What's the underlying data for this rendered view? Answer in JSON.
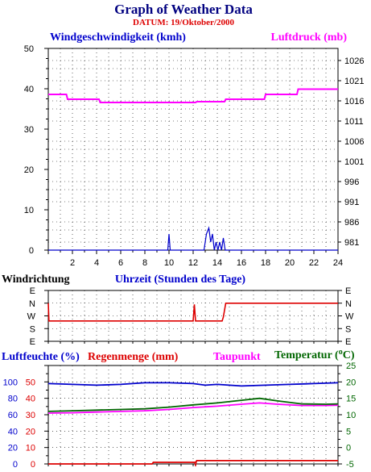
{
  "title": "Graph of Weather Data",
  "datum": "DATUM: 19/Oktober/2000",
  "colors": {
    "blue": "#0000cc",
    "magenta": "#ff00ff",
    "red": "#dd0000",
    "green": "#006600",
    "navy": "#000080"
  },
  "chart_data": [
    {
      "type": "line",
      "panel": "wind-pressure",
      "left_label": "Windgeschwindigkeit (kmh)",
      "right_label": "Luftdruck (mb)",
      "xlabel": "Uhrzeit (Stunden des Tage)",
      "x_ticks": [
        "2",
        "4",
        "6",
        "8",
        "10",
        "12",
        "14",
        "16",
        "18",
        "20",
        "22",
        "24"
      ],
      "xlim": [
        0,
        24
      ],
      "left_ylim": [
        0,
        50
      ],
      "left_ticks": [
        "0",
        "10",
        "20",
        "30",
        "40",
        "50"
      ],
      "right_ylim": [
        979,
        1029
      ],
      "right_ticks": [
        "981",
        "986",
        "991",
        "996",
        "1001",
        "1006",
        "1011",
        "1016",
        "1021",
        "1026"
      ],
      "series": [
        {
          "name": "Windgeschwindigkeit (kmh)",
          "axis": "left",
          "color": "#0000cc",
          "x": [
            0,
            9.9,
            10.0,
            10.1,
            12.9,
            13.1,
            13.3,
            13.45,
            13.6,
            13.75,
            13.9,
            14.05,
            14.2,
            14.35,
            14.5,
            14.65,
            24
          ],
          "y": [
            0,
            0,
            4,
            0,
            0,
            4,
            5.5,
            2,
            4,
            0,
            2,
            0,
            2,
            0,
            3,
            0,
            0
          ]
        },
        {
          "name": "Luftdruck (mb)",
          "axis": "right",
          "color": "#ff00ff",
          "x": [
            0,
            1.5,
            1.6,
            4.2,
            4.3,
            12.2,
            12.3,
            14.6,
            14.7,
            17.9,
            18.0,
            20.6,
            20.7,
            24
          ],
          "y": [
            1017.6,
            1017.6,
            1016.4,
            1016.4,
            1015.6,
            1015.6,
            1015.8,
            1015.8,
            1016.4,
            1016.4,
            1017.6,
            1017.6,
            1018.9,
            1018.9
          ]
        }
      ]
    },
    {
      "type": "line",
      "panel": "wind-direction",
      "left_label": "Windrichtung",
      "categories": [
        "E",
        "S",
        "W",
        "N",
        "E"
      ],
      "series": [
        {
          "name": "Windrichtung",
          "color": "#dd0000",
          "x": [
            0,
            14.4,
            14.7,
            24
          ],
          "y": [
            "W-S",
            "W-S",
            "N",
            "N"
          ],
          "values": [
            1.6,
            1.6,
            3,
            3
          ]
        }
      ]
    },
    {
      "type": "line",
      "panel": "humidity-temp",
      "labels": {
        "humidity": "Luftfeuchte (%)",
        "rain": "Regenmenge (mm)",
        "dewpoint": "Taupunkt",
        "temperature": "Temperatur (",
        "degree": "o",
        "celsius": "C)"
      },
      "xlim": [
        0,
        24
      ],
      "left_ylim": [
        0,
        120
      ],
      "humidity_ticks": [
        "0",
        "20",
        "40",
        "60",
        "80",
        "100"
      ],
      "rain_ylim": [
        0,
        60
      ],
      "rain_ticks": [
        "0",
        "10",
        "20",
        "30",
        "40",
        "50"
      ],
      "right_ylim": [
        -5,
        25
      ],
      "right_ticks": [
        "-5",
        "0",
        "5",
        "10",
        "15",
        "20",
        "25"
      ],
      "series": [
        {
          "name": "Luftfeuchte (%)",
          "axis": "left",
          "color": "#0000cc",
          "x": [
            0,
            2,
            4,
            6,
            8,
            10,
            12,
            13,
            14,
            16,
            18,
            20,
            22,
            24
          ],
          "y": [
            98,
            97,
            96,
            97,
            99,
            99,
            98,
            96,
            97,
            95,
            96,
            97,
            98,
            99
          ]
        },
        {
          "name": "Regenmenge (mm)",
          "axis": "rain",
          "color": "#dd0000",
          "x": [
            0,
            8.6,
            8.7,
            12.2,
            12.3,
            24
          ],
          "y": [
            0,
            0,
            1,
            1,
            2,
            2
          ]
        },
        {
          "name": "Taupunkt",
          "axis": "right",
          "color": "#ff00ff",
          "x": [
            0,
            2,
            4,
            6,
            8,
            10,
            12,
            14,
            16,
            17.5,
            19,
            21,
            23,
            24
          ],
          "y": [
            10.5,
            10.6,
            10.8,
            11.0,
            11.2,
            11.6,
            12.2,
            12.6,
            13.2,
            13.6,
            13.2,
            12.8,
            12.8,
            12.9
          ]
        },
        {
          "name": "Temperatur (°C)",
          "axis": "right",
          "color": "#006600",
          "x": [
            0,
            2,
            4,
            6,
            8,
            10,
            12,
            14,
            16,
            17.5,
            19,
            21,
            23,
            24
          ],
          "y": [
            11.0,
            11.2,
            11.4,
            11.6,
            11.8,
            12.3,
            13.0,
            13.6,
            14.4,
            15.0,
            14.2,
            13.3,
            13.2,
            13.3
          ]
        }
      ]
    }
  ]
}
